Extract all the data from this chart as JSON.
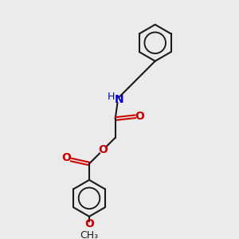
{
  "bg_color": "#ebebeb",
  "bond_color": "#1a1a1a",
  "oxygen_color": "#cc0000",
  "nitrogen_color": "#0000cc",
  "lw": 1.5,
  "fig_size": [
    3.0,
    3.0
  ],
  "dpi": 100,
  "xlim": [
    0,
    10
  ],
  "ylim": [
    0,
    10
  ]
}
